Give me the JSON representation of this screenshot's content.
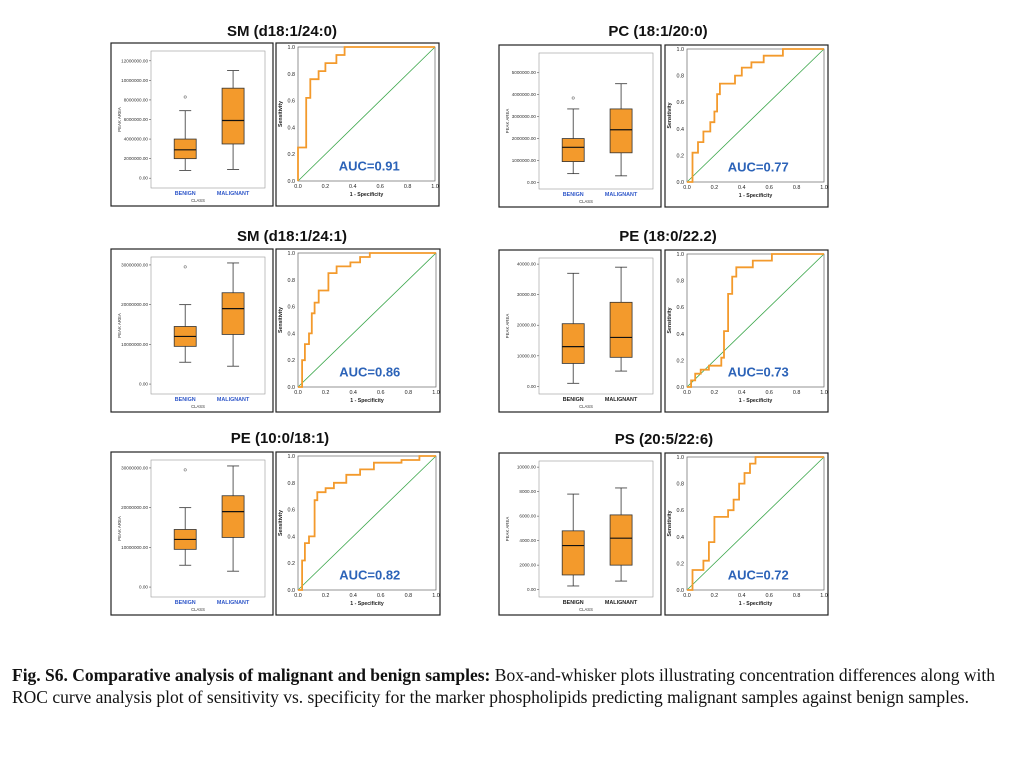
{
  "colors": {
    "box_fill": "#f39a2c",
    "roc_line": "#f39a2c",
    "ref_line": "#3aa64a",
    "auc_text": "#2c63b8",
    "class_label": "#2f57c9"
  },
  "chart_data": [
    {
      "type": "boxplot+roc",
      "title": "SM (d18:1/24:0)",
      "box": {
        "ylabel": "PEAK AREA",
        "xlabel": "CLASS",
        "categories": [
          "BENIGN",
          "MALIGNANT"
        ],
        "ylim": [
          -1000000,
          13000000
        ],
        "yticks": [
          0,
          2000000,
          4000000,
          6000000,
          8000000,
          10000000,
          12000000
        ],
        "ytick_labels": [
          "0.00",
          "2000000.00",
          "4000000.00",
          "6000000.00",
          "8000000.00",
          "10000000.00",
          "12000000.00"
        ],
        "groups": [
          {
            "min": 800000,
            "q1": 2000000,
            "median": 2900000,
            "q3": 4000000,
            "max": 6900000,
            "outliers": [
              8300000
            ]
          },
          {
            "min": 900000,
            "q1": 3500000,
            "median": 5900000,
            "q3": 9200000,
            "max": 11000000,
            "outliers": []
          }
        ]
      },
      "roc": {
        "xlabel": "1 - Specificity",
        "ylabel": "Sensitivity",
        "ticks": [
          "0.0",
          "0.2",
          "0.4",
          "0.6",
          "0.8",
          "1.0"
        ],
        "auc_label": "AUC=0.91",
        "points": [
          [
            0,
            0
          ],
          [
            0,
            0.25
          ],
          [
            0.06,
            0.25
          ],
          [
            0.06,
            0.62
          ],
          [
            0.09,
            0.62
          ],
          [
            0.09,
            0.76
          ],
          [
            0.15,
            0.76
          ],
          [
            0.15,
            0.82
          ],
          [
            0.2,
            0.82
          ],
          [
            0.2,
            0.88
          ],
          [
            0.28,
            0.88
          ],
          [
            0.28,
            0.94
          ],
          [
            0.34,
            0.94
          ],
          [
            0.34,
            1.0
          ],
          [
            1,
            1
          ]
        ]
      }
    },
    {
      "type": "boxplot+roc",
      "title": "PC (18:1/20:0)",
      "box": {
        "ylabel": "PEAK AREA",
        "xlabel": "CLASS",
        "categories": [
          "BENIGN",
          "MALIGNANT"
        ],
        "ylim": [
          -300000,
          5900000
        ],
        "yticks": [
          0,
          1000000,
          2000000,
          3000000,
          4000000,
          5000000
        ],
        "ytick_labels": [
          "0.00",
          "1000000.00",
          "2000000.00",
          "3000000.00",
          "4000000.00",
          "5000000.00"
        ],
        "groups": [
          {
            "min": 400000,
            "q1": 950000,
            "median": 1600000,
            "q3": 2000000,
            "max": 3350000,
            "outliers": [
              3850000
            ]
          },
          {
            "min": 300000,
            "q1": 1350000,
            "median": 2400000,
            "q3": 3350000,
            "max": 4500000,
            "outliers": []
          }
        ]
      },
      "roc": {
        "xlabel": "1 - Specificity",
        "ylabel": "Sensitivity",
        "ticks": [
          "0.0",
          "0.2",
          "0.4",
          "0.6",
          "0.8",
          "1.0"
        ],
        "auc_label": "AUC=0.77",
        "points": [
          [
            0,
            0
          ],
          [
            0.04,
            0
          ],
          [
            0.04,
            0.22
          ],
          [
            0.08,
            0.22
          ],
          [
            0.08,
            0.3
          ],
          [
            0.12,
            0.3
          ],
          [
            0.12,
            0.38
          ],
          [
            0.17,
            0.38
          ],
          [
            0.17,
            0.45
          ],
          [
            0.2,
            0.45
          ],
          [
            0.2,
            0.53
          ],
          [
            0.22,
            0.53
          ],
          [
            0.22,
            0.66
          ],
          [
            0.24,
            0.66
          ],
          [
            0.24,
            0.74
          ],
          [
            0.35,
            0.74
          ],
          [
            0.35,
            0.8
          ],
          [
            0.4,
            0.8
          ],
          [
            0.4,
            0.86
          ],
          [
            0.47,
            0.86
          ],
          [
            0.47,
            0.9
          ],
          [
            0.56,
            0.9
          ],
          [
            0.56,
            0.95
          ],
          [
            0.7,
            0.95
          ],
          [
            0.7,
            1.0
          ],
          [
            1,
            1
          ]
        ]
      }
    },
    {
      "type": "boxplot+roc",
      "title": "SM (d18:1/24:1)",
      "box": {
        "ylabel": "PEAK AREA",
        "xlabel": "CLASS",
        "categories": [
          "BENIGN",
          "MALIGNANT"
        ],
        "ylim": [
          -2500000,
          32000000
        ],
        "yticks": [
          0,
          10000000,
          20000000,
          30000000
        ],
        "ytick_labels": [
          "0.00",
          "10000000.00",
          "20000000.00",
          "30000000.00"
        ],
        "groups": [
          {
            "min": 5500000,
            "q1": 9500000,
            "median": 12000000,
            "q3": 14500000,
            "max": 20000000,
            "outliers": [
              29500000
            ]
          },
          {
            "min": 4500000,
            "q1": 12500000,
            "median": 19000000,
            "q3": 23000000,
            "max": 30500000,
            "outliers": []
          }
        ]
      },
      "roc": {
        "xlabel": "1 - Specificity",
        "ylabel": "Sensitivity",
        "ticks": [
          "0.0",
          "0.2",
          "0.4",
          "0.6",
          "0.8",
          "1.0"
        ],
        "auc_label": "AUC=0.86",
        "points": [
          [
            0,
            0
          ],
          [
            0.03,
            0
          ],
          [
            0.03,
            0.2
          ],
          [
            0.05,
            0.2
          ],
          [
            0.05,
            0.32
          ],
          [
            0.08,
            0.32
          ],
          [
            0.08,
            0.4
          ],
          [
            0.1,
            0.4
          ],
          [
            0.1,
            0.55
          ],
          [
            0.12,
            0.55
          ],
          [
            0.12,
            0.63
          ],
          [
            0.15,
            0.63
          ],
          [
            0.15,
            0.72
          ],
          [
            0.22,
            0.72
          ],
          [
            0.22,
            0.85
          ],
          [
            0.28,
            0.85
          ],
          [
            0.28,
            0.9
          ],
          [
            0.38,
            0.9
          ],
          [
            0.38,
            0.93
          ],
          [
            0.45,
            0.93
          ],
          [
            0.45,
            0.97
          ],
          [
            0.52,
            0.97
          ],
          [
            0.52,
            1.0
          ],
          [
            1,
            1
          ]
        ]
      }
    },
    {
      "type": "boxplot+roc",
      "title": "PE (18:0/22.2)",
      "box": {
        "ylabel": "PEAK AREA",
        "xlabel": "CLASS",
        "categories": [
          "BENIGN",
          "MALIGNANT"
        ],
        "ylim": [
          -2500,
          42000
        ],
        "yticks": [
          0,
          10000,
          20000,
          30000,
          40000
        ],
        "ytick_labels": [
          "0.00",
          "10000.00",
          "20000.00",
          "30000.00",
          "40000.00"
        ],
        "groups": [
          {
            "min": 1000,
            "q1": 7500,
            "median": 13000,
            "q3": 20500,
            "max": 37000,
            "outliers": []
          },
          {
            "min": 5000,
            "q1": 9500,
            "median": 16000,
            "q3": 27500,
            "max": 39000,
            "outliers": []
          }
        ]
      },
      "roc": {
        "xlabel": "1 - Specificity",
        "ylabel": "Sensitivity",
        "ticks": [
          "0.0",
          "0.2",
          "0.4",
          "0.6",
          "0.8",
          "1.0"
        ],
        "auc_label": "AUC=0.73",
        "points": [
          [
            0,
            0
          ],
          [
            0.03,
            0
          ],
          [
            0.03,
            0.05
          ],
          [
            0.06,
            0.05
          ],
          [
            0.06,
            0.1
          ],
          [
            0.1,
            0.1
          ],
          [
            0.1,
            0.13
          ],
          [
            0.16,
            0.13
          ],
          [
            0.16,
            0.16
          ],
          [
            0.25,
            0.16
          ],
          [
            0.25,
            0.22
          ],
          [
            0.27,
            0.22
          ],
          [
            0.27,
            0.42
          ],
          [
            0.3,
            0.42
          ],
          [
            0.3,
            0.7
          ],
          [
            0.33,
            0.7
          ],
          [
            0.33,
            0.83
          ],
          [
            0.36,
            0.83
          ],
          [
            0.36,
            0.9
          ],
          [
            0.48,
            0.9
          ],
          [
            0.48,
            0.95
          ],
          [
            0.62,
            0.95
          ],
          [
            0.62,
            1.0
          ],
          [
            1,
            1
          ]
        ]
      }
    },
    {
      "type": "boxplot+roc",
      "title": "PE (10:0/18:1)",
      "box": {
        "ylabel": "PEAK AREA",
        "xlabel": "CLASS",
        "categories": [
          "BENIGN",
          "MALIGNANT"
        ],
        "ylim": [
          -2500000,
          32000000
        ],
        "yticks": [
          0,
          10000000,
          20000000,
          30000000
        ],
        "ytick_labels": [
          "0.00",
          "10000000.00",
          "20000000.00",
          "30000000.00"
        ],
        "groups": [
          {
            "min": 5500000,
            "q1": 9500000,
            "median": 12000000,
            "q3": 14500000,
            "max": 20000000,
            "outliers": [
              29500000
            ]
          },
          {
            "min": 4000000,
            "q1": 12500000,
            "median": 19000000,
            "q3": 23000000,
            "max": 30500000,
            "outliers": []
          }
        ]
      },
      "roc": {
        "xlabel": "1 - Specificity",
        "ylabel": "Sensitivity",
        "ticks": [
          "0.0",
          "0.2",
          "0.4",
          "0.6",
          "0.8",
          "1.0"
        ],
        "auc_label": "AUC=0.82",
        "points": [
          [
            0,
            0
          ],
          [
            0.03,
            0
          ],
          [
            0.03,
            0.22
          ],
          [
            0.05,
            0.22
          ],
          [
            0.05,
            0.35
          ],
          [
            0.08,
            0.35
          ],
          [
            0.08,
            0.4
          ],
          [
            0.12,
            0.4
          ],
          [
            0.12,
            0.67
          ],
          [
            0.14,
            0.67
          ],
          [
            0.14,
            0.73
          ],
          [
            0.2,
            0.73
          ],
          [
            0.2,
            0.76
          ],
          [
            0.26,
            0.76
          ],
          [
            0.26,
            0.8
          ],
          [
            0.35,
            0.8
          ],
          [
            0.35,
            0.86
          ],
          [
            0.45,
            0.86
          ],
          [
            0.45,
            0.9
          ],
          [
            0.55,
            0.9
          ],
          [
            0.55,
            0.95
          ],
          [
            0.75,
            0.95
          ],
          [
            0.75,
            0.97
          ],
          [
            0.88,
            0.97
          ],
          [
            0.88,
            1.0
          ],
          [
            1,
            1
          ]
        ]
      }
    },
    {
      "type": "boxplot+roc",
      "title": "PS (20:5/22:6)",
      "box": {
        "ylabel": "PEAK AREA",
        "xlabel": "CLASS",
        "categories": [
          "BENIGN",
          "MALIGNANT"
        ],
        "ylim": [
          -600,
          10500
        ],
        "yticks": [
          0,
          2000,
          4000,
          6000,
          8000,
          10000
        ],
        "ytick_labels": [
          "0.00",
          "2000.00",
          "4000.00",
          "6000.00",
          "8000.00",
          "10000.00"
        ],
        "groups": [
          {
            "min": 300,
            "q1": 1200,
            "median": 3600,
            "q3": 4800,
            "max": 7800,
            "outliers": []
          },
          {
            "min": 700,
            "q1": 2000,
            "median": 4200,
            "q3": 6100,
            "max": 8300,
            "outliers": []
          }
        ]
      },
      "roc": {
        "xlabel": "1 - Specificity",
        "ylabel": "Sensitivity",
        "ticks": [
          "0.0",
          "0.2",
          "0.4",
          "0.6",
          "0.8",
          "1.0"
        ],
        "auc_label": "AUC=0.72",
        "points": [
          [
            0,
            0
          ],
          [
            0.04,
            0
          ],
          [
            0.04,
            0.15
          ],
          [
            0.12,
            0.15
          ],
          [
            0.12,
            0.22
          ],
          [
            0.16,
            0.22
          ],
          [
            0.16,
            0.36
          ],
          [
            0.2,
            0.36
          ],
          [
            0.2,
            0.55
          ],
          [
            0.3,
            0.55
          ],
          [
            0.3,
            0.6
          ],
          [
            0.34,
            0.6
          ],
          [
            0.34,
            0.68
          ],
          [
            0.38,
            0.68
          ],
          [
            0.38,
            0.8
          ],
          [
            0.42,
            0.8
          ],
          [
            0.42,
            0.88
          ],
          [
            0.46,
            0.88
          ],
          [
            0.46,
            0.95
          ],
          [
            0.5,
            0.95
          ],
          [
            0.5,
            1.0
          ],
          [
            1,
            1
          ]
        ]
      }
    }
  ],
  "caption": {
    "bold": "Fig. S6. Comparative analysis of malignant and benign samples:",
    "text": " Box-and-whisker plots illustrating concentration differences along with ROC curve analysis plot of sensitivity vs. specificity for the marker phospholipids predicting malignant samples against benign samples."
  }
}
